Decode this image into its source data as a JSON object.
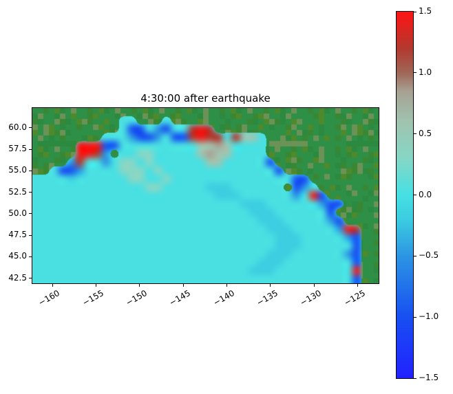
{
  "figure": {
    "background": "#ffffff"
  },
  "chart_data": {
    "type": "heatmap",
    "title": "4:30:00 after earthquake",
    "xlabel": "",
    "ylabel": "",
    "xlim": [
      -162.3,
      -122.6
    ],
    "ylim": [
      41.9,
      62.3
    ],
    "x_ticks": [
      {
        "value": -160,
        "label": "−160"
      },
      {
        "value": -155,
        "label": "−155"
      },
      {
        "value": -150,
        "label": "−150"
      },
      {
        "value": -145,
        "label": "−145"
      },
      {
        "value": -140,
        "label": "−140"
      },
      {
        "value": -135,
        "label": "−135"
      },
      {
        "value": -130,
        "label": "−130"
      },
      {
        "value": -125,
        "label": "−125"
      }
    ],
    "y_ticks": [
      {
        "value": 42.5,
        "label": "42.5"
      },
      {
        "value": 45.0,
        "label": "45.0"
      },
      {
        "value": 47.5,
        "label": "47.5"
      },
      {
        "value": 50.0,
        "label": "50.0"
      },
      {
        "value": 52.5,
        "label": "52.5"
      },
      {
        "value": 55.0,
        "label": "55.0"
      },
      {
        "value": 57.5,
        "label": "57.5"
      },
      {
        "value": 60.0,
        "label": "60.0"
      }
    ],
    "colorbar": {
      "min": -1.5,
      "max": 1.5,
      "ticks": [
        {
          "value": 1.5,
          "label": "1.5"
        },
        {
          "value": 1.0,
          "label": "1.0"
        },
        {
          "value": 0.5,
          "label": "0.5"
        },
        {
          "value": 0.0,
          "label": "0.0"
        },
        {
          "value": -0.5,
          "label": "−0.5"
        },
        {
          "value": -1.0,
          "label": "−1.0"
        },
        {
          "value": -1.5,
          "label": "−1.5"
        }
      ]
    },
    "colormap_stops": [
      [
        -1.5,
        [
          34,
          34,
          255
        ]
      ],
      [
        -1.0,
        [
          24,
          80,
          242
        ]
      ],
      [
        -0.5,
        [
          45,
          150,
          228
        ]
      ],
      [
        -0.2,
        [
          60,
          205,
          225
        ]
      ],
      [
        0.0,
        [
          70,
          225,
          228
        ]
      ],
      [
        0.3,
        [
          135,
          215,
          198
        ]
      ],
      [
        0.6,
        [
          160,
          196,
          176
        ]
      ],
      [
        0.85,
        [
          168,
          162,
          148
        ]
      ],
      [
        1.0,
        [
          160,
          104,
          88
        ]
      ],
      [
        1.2,
        [
          178,
          58,
          48
        ]
      ],
      [
        1.5,
        [
          255,
          20,
          20
        ]
      ]
    ],
    "land_shades": [
      "#2e8f47",
      "#2e8f47",
      "#3a8733",
      "#2e8f47",
      "#4e8a2b",
      "#2b8a40",
      "#2e8f47",
      "#6c9257"
    ],
    "grid": {
      "cols": 40,
      "rows_count": 21,
      "lat_top": 62,
      "lat_bottom": 42,
      "lon_left": -162,
      "lon_right": -123,
      "legend": {
        "L": "land",
        ".": 0.02,
        "d": -0.18,
        "t": 0.3,
        "g": 0.6,
        "G": 0.85,
        "b": -0.5,
        "B": -1.0,
        "r": 1.2,
        "R": 1.45
      },
      "rows": [
        "LLLLLLLLLLLLLLLLLLLLLLLLLLLLLLLLLLLLLLLL",
        "LLLLLLLLLL..LLL.LLLLLLLLLLLLLLLLLLLLLLLL",
        "LLLLLLLLLL.BB.bB..rRrLLLLLLLLLLLLLLLLLLL",
        "LLLLLLLL...bBBb.BBrRrr.rgg.LLLLLLLLLLLLL",
        "LLLLLRRRBB.........ggGg....LLLLLLLLLLLLL",
        "LLLLLRRrbL..tt.....gGgg....LLLLLLLLLLLLL",
        "LLLLbr..b.tt.t......gg.....BLLLLLLLLLLLL",
        "LL.BBb....ttt.t.............BLLLLLLLLLLL",
        "....d......tt..t..............BBLLLLLLLL",
        ".............tt.....ddd......LBb.LLLLLLL",
        ".....................ddd......b.RBLLLLLL",
        "........................ddd......bBBLLLL",
        ".........................ddd......BLLLLL",
        "..........................ddd.....bBLLLL",
        "...........................ddd.....bRrLL",
        "............................ddd.....bBLL",
        "............................ddd......BLL",
        "...........................ddd......bBLL",
        "..........................ddd........BLL",
        ".........................ddd.........RLL",
        ".....................................BLL"
      ]
    }
  }
}
